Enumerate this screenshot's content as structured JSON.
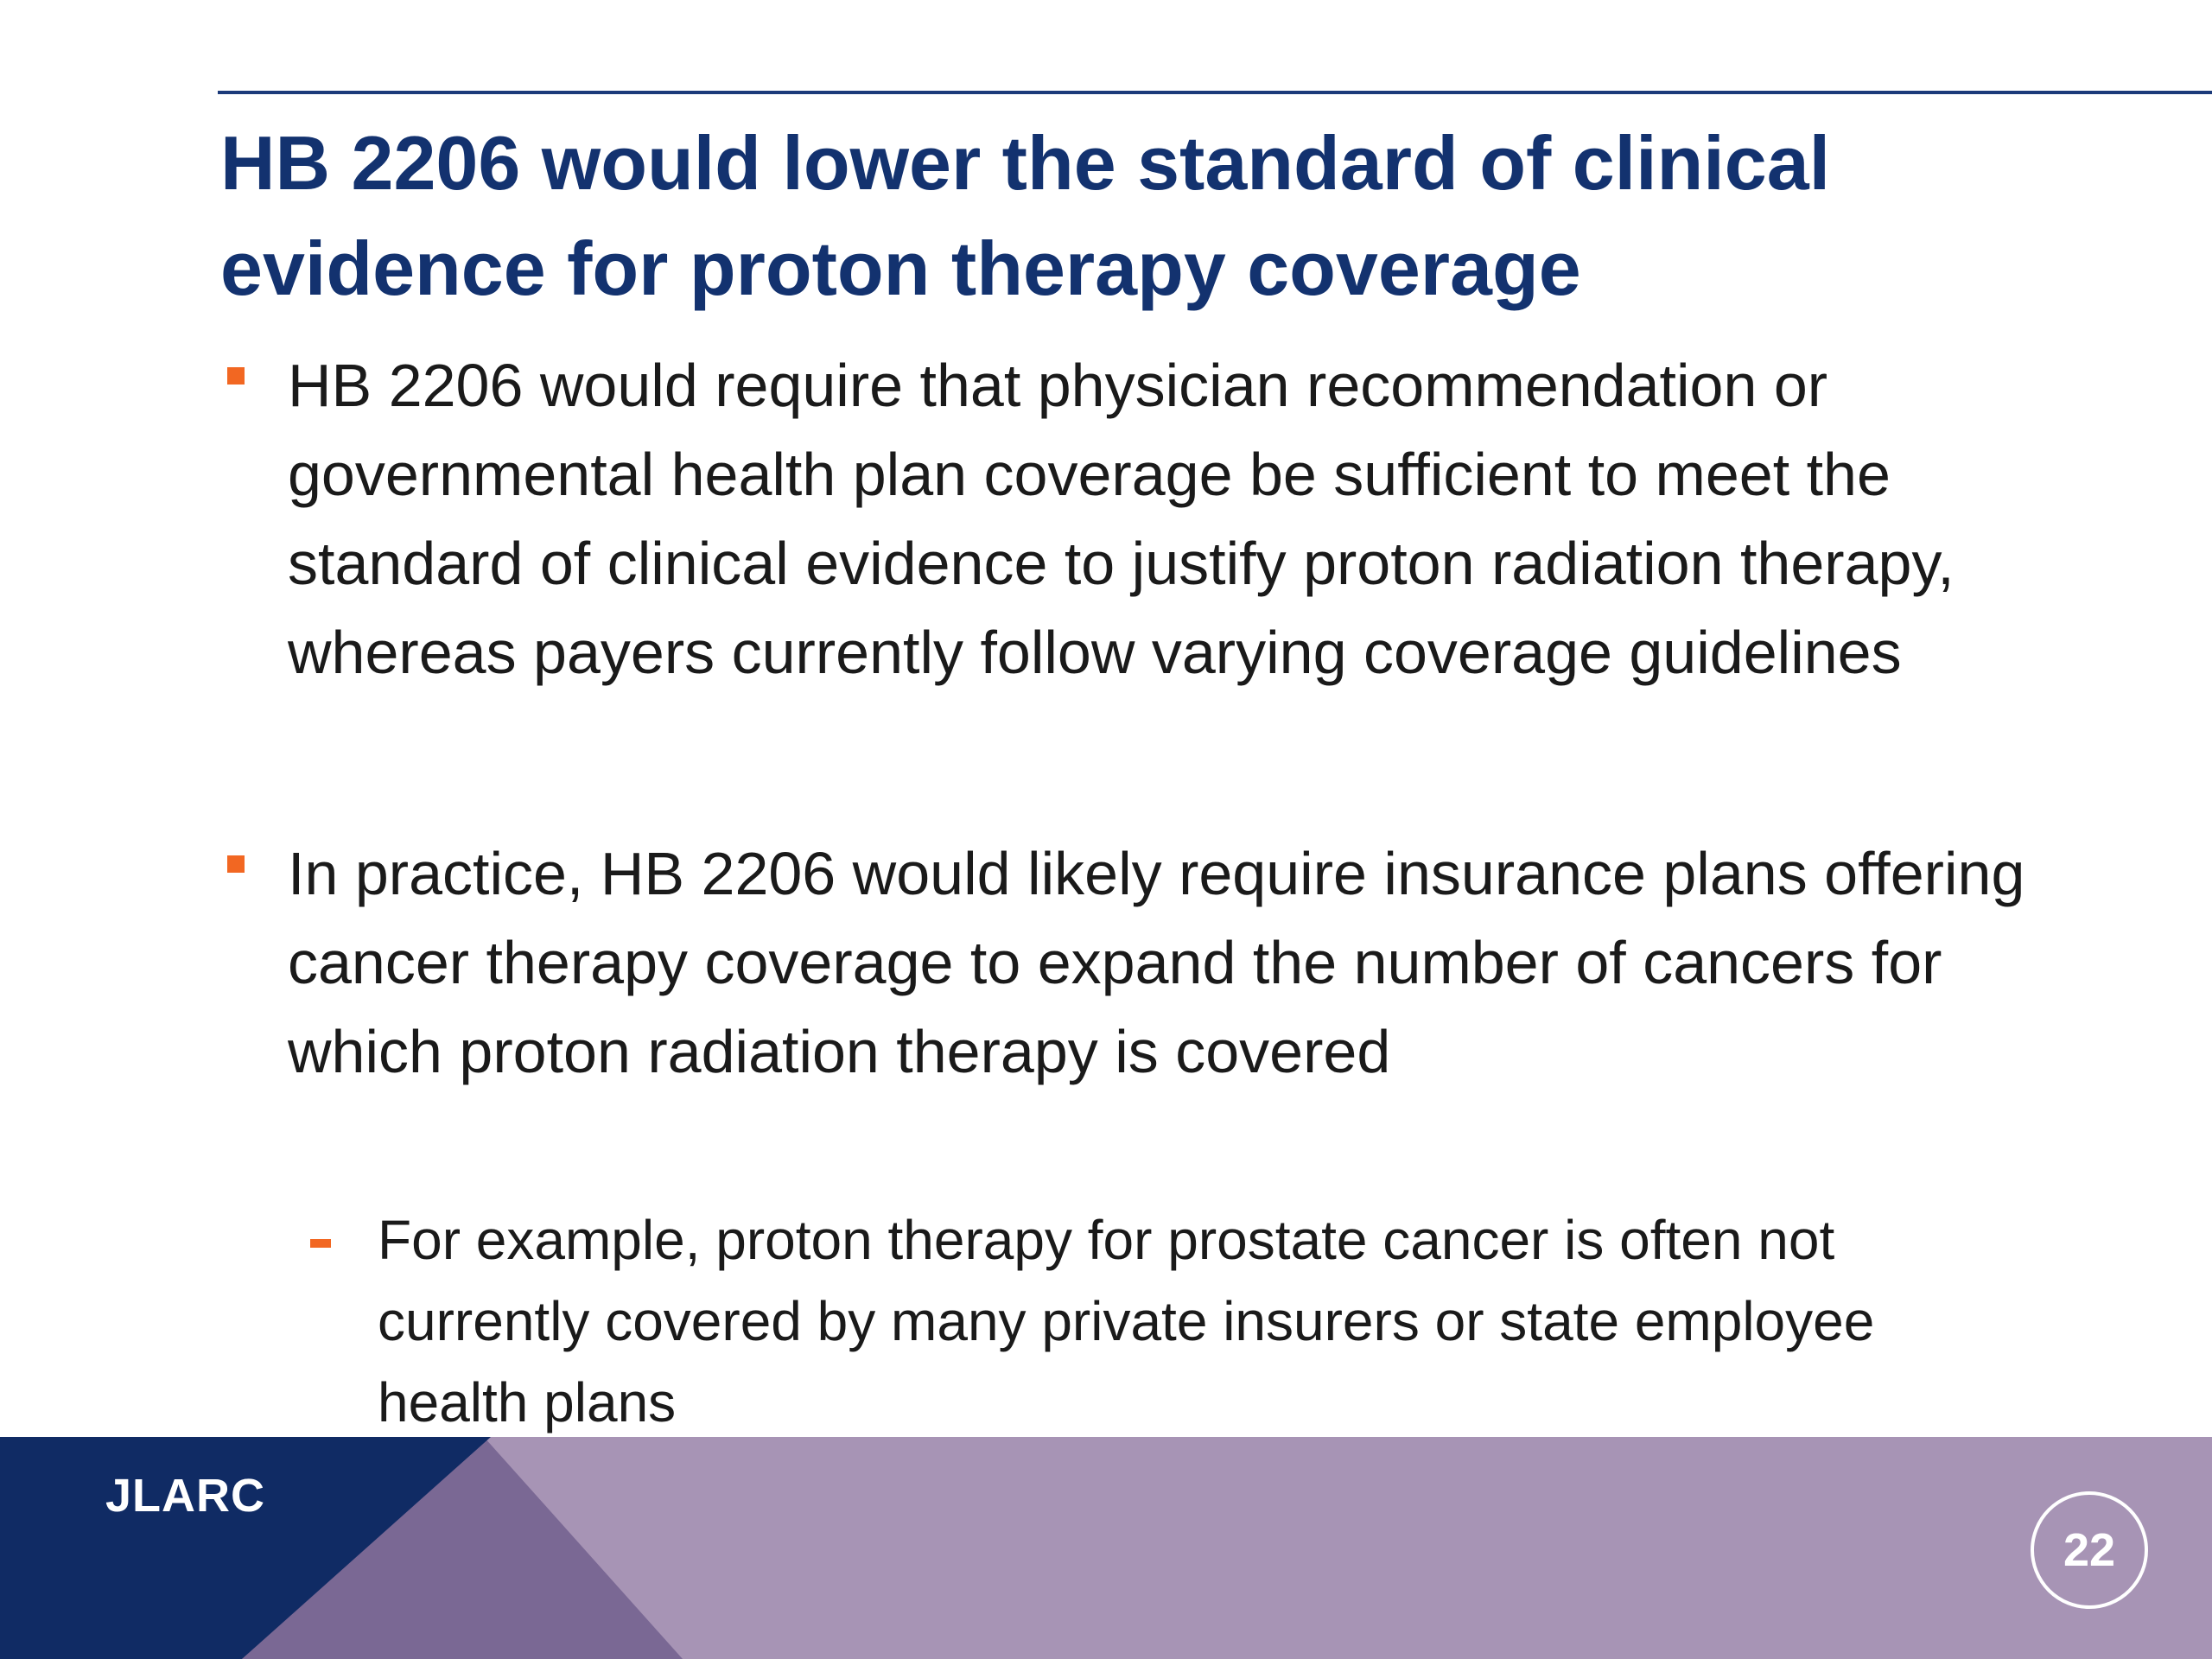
{
  "slide": {
    "title": "HB 2206 would lower the standard of clinical evidence for proton therapy coverage",
    "bullets": [
      {
        "text": "HB 2206 would require that physician recommendation or governmental health plan coverage be sufficient to meet the standard of clinical evidence to justify proton radiation therapy, whereas payers currently follow varying coverage guidelines"
      },
      {
        "text": "In practice, HB 2206 would likely require insurance plans offering cancer therapy coverage to expand the number of cancers for which proton radiation therapy is covered",
        "subbullets": [
          {
            "text": "For example, proton therapy for prostate cancer is often not currently covered by many private insurers or state employee health plans"
          }
        ]
      }
    ]
  },
  "footer": {
    "logo": "JLARC",
    "page_number": "22"
  },
  "colors": {
    "title": "#13326f",
    "rule": "#1b3a7a",
    "bullet_marker": "#f26722",
    "footer_base": "#a794b5",
    "footer_mid": "#7a6894",
    "footer_dark": "#102b64",
    "footer_text": "#ffffff"
  }
}
